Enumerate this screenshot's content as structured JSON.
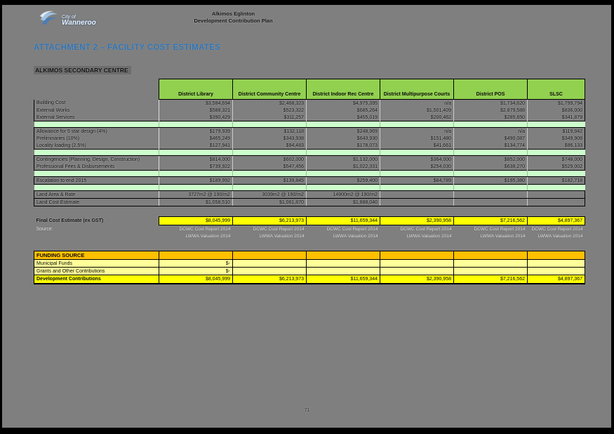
{
  "colors": {
    "header_green": "#92D050",
    "sep_green": "#CCFFCC",
    "yellow": "#FFFF00",
    "light_yellow": "#FFFF99",
    "orange": "#FFC000",
    "title_blue": "#2E74B5",
    "page_gray": "#7f7f7f"
  },
  "page": {
    "logo": {
      "line1": "City of",
      "line2": "Wanneroo"
    },
    "doc_header": {
      "line1": "Alkimos Eglinton",
      "line2": "Development Contribution Plan"
    },
    "title": "ATTACHMENT 2 – FACILITY COST ESTIMATES",
    "subtitle": "ALKIMOS SECONDARY CENTRE",
    "page_number": "71"
  },
  "table": {
    "columns": [
      "District Library",
      "District Community Centre",
      "District Indoor Rec Centre",
      "District Multipurpose Courts",
      "District POS",
      "SLSC"
    ],
    "rows": [
      {
        "type": "data",
        "label": "Building Cost",
        "cells": [
          "$3,584,694",
          "$2,468,323",
          "$4,975,395",
          "n/a",
          "$1,734,620",
          "$1,799,794"
        ]
      },
      {
        "type": "data",
        "label": "External Works",
        "cells": [
          "$588,321",
          "$523,322",
          "$685,264",
          "$1,501,409",
          "$2,879,588",
          "$836,000"
        ]
      },
      {
        "type": "data",
        "label": "External Services",
        "cells": [
          "$390,429",
          "$311,257",
          "$455,019",
          "$200,462",
          "$285,650",
          "$341,879"
        ]
      },
      {
        "type": "sep",
        "label": "",
        "cells": [
          "",
          "",
          "",
          "",
          "",
          ""
        ]
      },
      {
        "type": "data",
        "label": "Allowance for 5 star design (4%)",
        "cells": [
          "$179,939",
          "$132,118",
          "$248,969",
          "n/a",
          "n/a",
          "$119,942"
        ]
      },
      {
        "type": "data",
        "label": "Preliminaries (10%)",
        "cells": [
          "$465,249",
          "$343,938",
          "$643,930",
          "$151,480",
          "$490,087",
          "$349,908"
        ]
      },
      {
        "type": "data",
        "label": "Locality loading (2.5%)",
        "cells": [
          "$127,941",
          "$94,483",
          "$178,073",
          "$41,661",
          "$134,774",
          "$96,133"
        ]
      },
      {
        "type": "sep",
        "label": "",
        "cells": [
          "",
          "",
          "",
          "",
          "",
          ""
        ]
      },
      {
        "type": "data",
        "label": "Contingencies (Planning, Design, Construction)",
        "cells": [
          "$814,000",
          "$602,000",
          "$1,132,000",
          "$364,000",
          "$852,000",
          "$748,000"
        ]
      },
      {
        "type": "data",
        "label": "Professional Fees & Disbursements",
        "cells": [
          "$739,922",
          "$547,456",
          "$1,022,331",
          "$254,030",
          "$638,270",
          "$529,002"
        ]
      },
      {
        "type": "sep",
        "label": "",
        "cells": [
          "",
          "",
          "",
          "",
          "",
          ""
        ]
      },
      {
        "type": "data",
        "label": "Escalation to end 2015",
        "cells": [
          "$189,992",
          "$139,845",
          "$259,400",
          "$84,789",
          "$195,380",
          "$182,718"
        ]
      },
      {
        "type": "sep",
        "label": "",
        "cells": [
          "",
          "",
          "",
          "",
          "",
          ""
        ]
      },
      {
        "type": "land",
        "label": "Land Area & Rate",
        "cells": [
          "3727m2 @ 190/m2",
          "3039m2 @ 190/m2",
          "14900m2 @ 190/m2",
          "",
          "",
          ""
        ]
      },
      {
        "type": "land",
        "label": "Land Cost Estimate",
        "cells": [
          "$1,058,510",
          "$1,061,870",
          "$1,888,040",
          "",
          "",
          ""
        ]
      },
      {
        "type": "gap",
        "label": "",
        "cells": []
      },
      {
        "type": "final",
        "label": "Final Cost Estimate (ex GST)",
        "cells": [
          "$8,045,999",
          "$6,213,973",
          "$11,659,344",
          "$2,390,958",
          "$7,216,562",
          "$4,897,367"
        ]
      },
      {
        "type": "source",
        "label": "Source:",
        "cells": [
          "DCWC Cost Report 2014\nLWWA Valuation 2014",
          "DCWC Cost Report 2014\nLWWA Valuation 2014",
          "DCWC Cost Report 2014\nLWWA Valuation 2014",
          "DCWC Cost Report 2014\nLWWA Valuation 2014",
          "DCWC Cost Report 2014\nLWWA Valuation 2014",
          "DCWC Cost Report 2014\nLWWA Valuation 2014"
        ]
      },
      {
        "type": "gap",
        "label": "",
        "cells": []
      },
      {
        "type": "funding_header",
        "label": "FUNDING SOURCE",
        "cells": [
          "",
          "",
          "",
          "",
          "",
          ""
        ]
      },
      {
        "type": "funding",
        "label": "Municipal Funds",
        "cells": [
          "$-",
          "",
          "",
          "",
          "",
          ""
        ]
      },
      {
        "type": "funding",
        "label": "Grants and Other Contributions",
        "cells": [
          "$-",
          "",
          "",
          "",
          "",
          ""
        ]
      },
      {
        "type": "funding_total",
        "label": "Development Contributions",
        "cells": [
          "$8,045,999",
          "$6,213,973",
          "$11,659,344",
          "$2,390,958",
          "$7,216,562",
          "$4,897,367"
        ]
      }
    ]
  }
}
